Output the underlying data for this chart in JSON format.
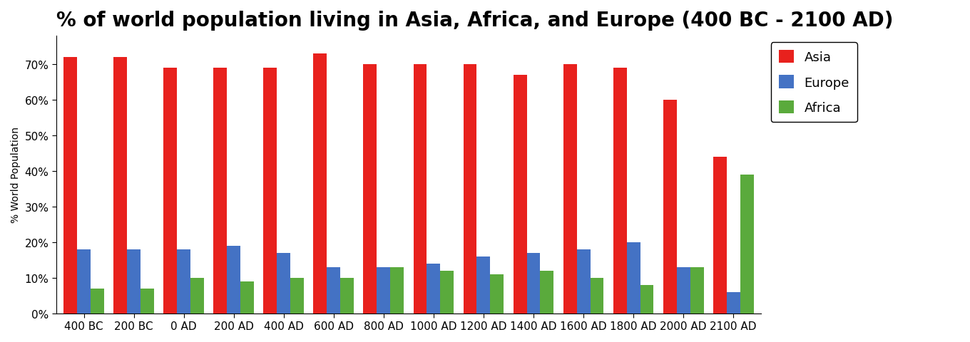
{
  "title": "% of world population living in Asia, Africa, and Europe (400 BC - 2100 AD)",
  "ylabel": "% World Population",
  "categories": [
    "400 BC",
    "200 BC",
    "0 AD",
    "200 AD",
    "400 AD",
    "600 AD",
    "800 AD",
    "1000 AD",
    "1200 AD",
    "1400 AD",
    "1600 AD",
    "1800 AD",
    "2000 AD",
    "2100 AD"
  ],
  "asia": [
    72,
    72,
    69,
    69,
    69,
    73,
    70,
    70,
    70,
    67,
    70,
    69,
    60,
    44
  ],
  "europe": [
    18,
    18,
    18,
    19,
    17,
    13,
    13,
    14,
    16,
    17,
    18,
    20,
    13,
    6
  ],
  "africa": [
    7,
    7,
    10,
    9,
    10,
    10,
    13,
    12,
    11,
    12,
    10,
    8,
    13,
    39
  ],
  "asia_color": "#e8211d",
  "europe_color": "#4472c4",
  "africa_color": "#5aaa3c",
  "title_fontsize": 20,
  "ylabel_fontsize": 10,
  "legend_fontsize": 13,
  "tick_fontsize": 11,
  "ylim": [
    0,
    78
  ],
  "yticks": [
    0,
    10,
    20,
    30,
    40,
    50,
    60,
    70
  ],
  "ytick_labels": [
    "0%",
    "10%",
    "20%",
    "30%",
    "40%",
    "50%",
    "60%",
    "70%"
  ]
}
